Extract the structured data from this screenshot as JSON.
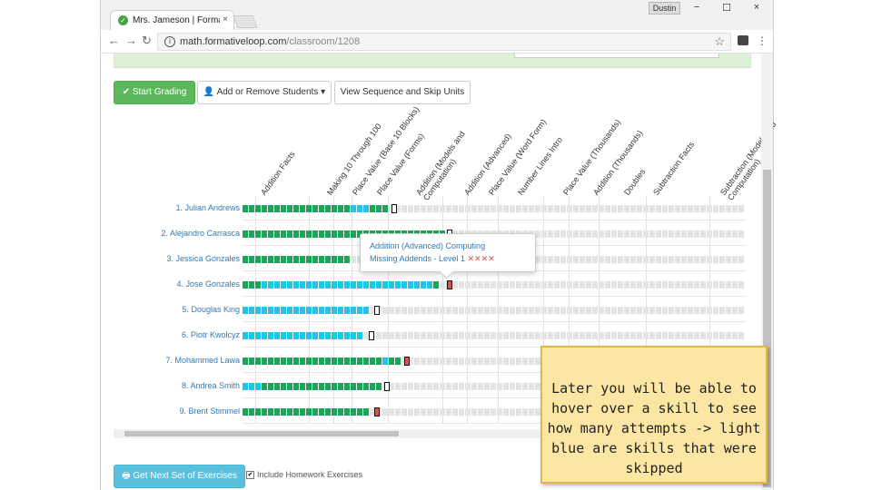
{
  "browser": {
    "tab_title": "Mrs. Jameson | Formative",
    "tab_close": "×",
    "user_chip": "Dustin",
    "window_controls": {
      "minimize": "−",
      "maximize": "☐",
      "close": "×"
    },
    "nav": {
      "back": "←",
      "forward": "→",
      "reload": "↻"
    },
    "url_host": "math.formativeloop.com",
    "url_path": "/classroom/1208",
    "info_icon": "i",
    "star_icon": "☆",
    "menu_icon": "⋮"
  },
  "toolbar": {
    "start_grading": "✔ Start Grading",
    "add_remove": "👤 Add or Remove Students ▾",
    "view_sequence": "View Sequence and Skip Units"
  },
  "skills": [
    {
      "label": "Addition Facts"
    },
    {
      "label": "Making 10 Through 100"
    },
    {
      "label": "Place Value (Base 10 Blocks)"
    },
    {
      "label": "Place Value (Forms)"
    },
    {
      "label": "Addition (Models and\nComputation)"
    },
    {
      "label": "Addition (Advanced)"
    },
    {
      "label": "Place Value (Word Form)"
    },
    {
      "label": "Number Lines Intro"
    },
    {
      "label": "Place Value (Thousands)"
    },
    {
      "label": "Addition (Thousands)"
    },
    {
      "label": "Doubles"
    },
    {
      "label": "Subtraction Facts"
    },
    {
      "label": "Subtraction (Models and\nComputation)"
    }
  ],
  "students": [
    {
      "name": "1. Julian Andrews",
      "green_end": 0.29,
      "blue_cells": [
        17,
        18,
        19
      ],
      "marker": "white",
      "marker_pos": 0.295
    },
    {
      "name": "2. Alejandro Carrasca",
      "green_end": 0.4,
      "blue_cells": [],
      "marker": "white",
      "marker_pos": 0.405
    },
    {
      "name": "3. Jessica Gonzales",
      "green_end": 0.22,
      "blue_cells": [],
      "marker": "none",
      "marker_pos": 0
    },
    {
      "name": "4. Jose Gonzales",
      "green_end": 0.39,
      "blue_cells": [
        3,
        4,
        5,
        6,
        7,
        8,
        9,
        10,
        11,
        12,
        13,
        14,
        15,
        16,
        17,
        18,
        19,
        20,
        21,
        22,
        23,
        24,
        25,
        26,
        27,
        28,
        29
      ],
      "marker": "red",
      "marker_pos": 0.405
    },
    {
      "name": "5. Douglas King",
      "green_end": 0.255,
      "blue_cells": [
        0,
        1,
        2,
        3,
        4,
        5,
        6,
        7,
        8,
        9,
        10,
        11,
        12,
        13,
        14,
        15,
        16,
        17,
        18,
        19,
        20,
        21,
        22
      ],
      "marker": "white",
      "marker_pos": 0.26
    },
    {
      "name": "6. Piotr Kwolcyz",
      "green_end": 0.245,
      "blue_cells": [
        0,
        1,
        2,
        3,
        4,
        5,
        6,
        7,
        8,
        9,
        10,
        11,
        12,
        13,
        14,
        15,
        16,
        17,
        18,
        19,
        20
      ],
      "marker": "white",
      "marker_pos": 0.25
    },
    {
      "name": "7. Mohammed Lawa",
      "green_end": 0.315,
      "blue_cells": [
        22
      ],
      "marker": "red",
      "marker_pos": 0.32
    },
    {
      "name": "8. Andrea Smith",
      "green_end": 0.275,
      "blue_cells": [
        0,
        1,
        2
      ],
      "marker": "white",
      "marker_pos": 0.28
    },
    {
      "name": "9. Brent Stimmel",
      "green_end": 0.255,
      "blue_cells": [],
      "marker": "red",
      "marker_pos": 0.26
    }
  ],
  "tooltip": {
    "line1": "Addition (Advanced) Computing",
    "line2": "Missing Addends - Level 1",
    "attempts": "✕✕✕✕"
  },
  "footer": {
    "get_next": "🖶 Get Next Set of Exercises",
    "include_homework": "Include Homework Exercises",
    "check": "✔"
  },
  "note": "Later you will be able to hover over a skill to see how many attempts -> light blue are skills that were skipped",
  "colors": {
    "green": "#1aa55a",
    "blue": "#24c3e8",
    "gray": "#e4e4e4",
    "red": "#d9534f",
    "note_bg": "#fce6a3"
  }
}
